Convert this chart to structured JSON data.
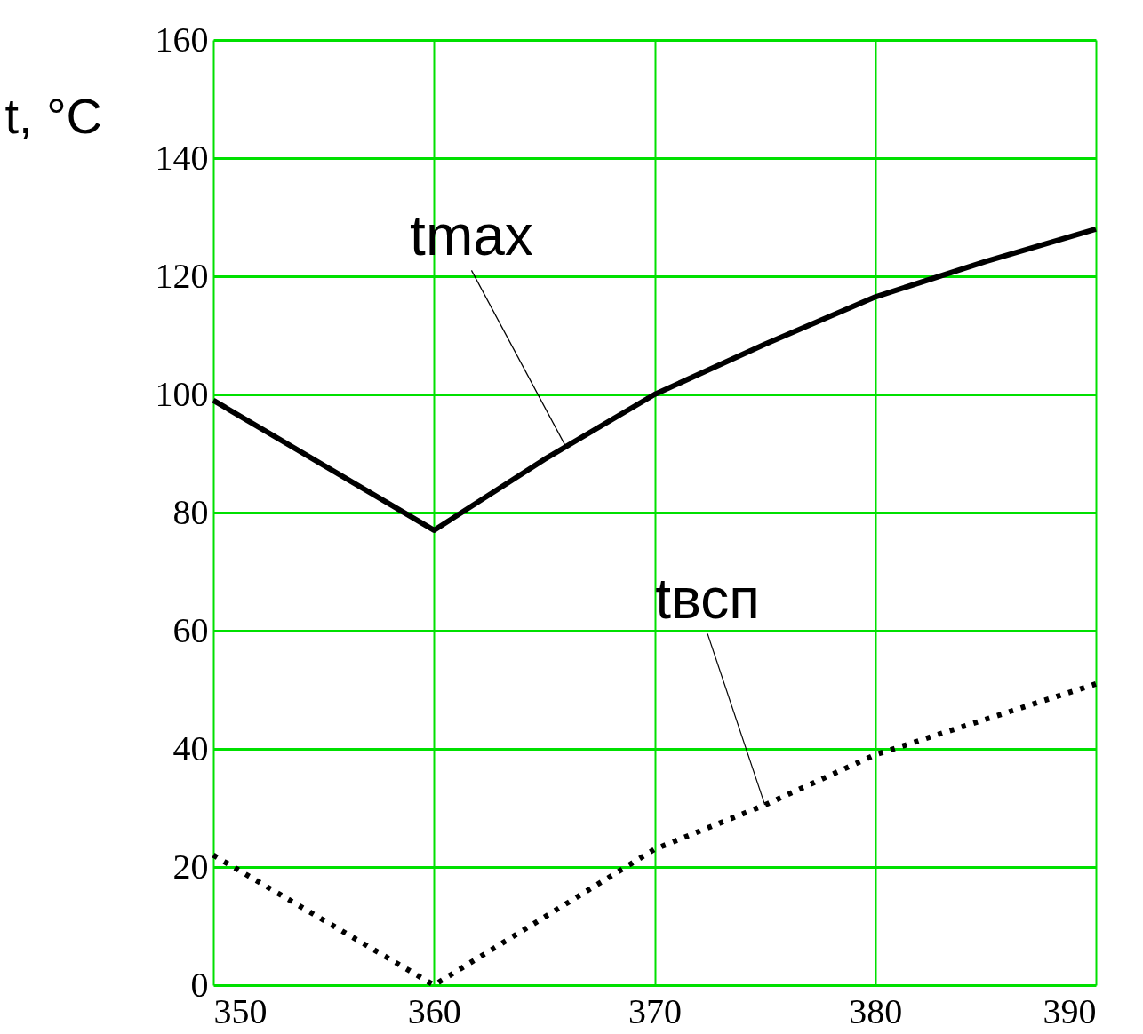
{
  "chart_data": {
    "type": "line",
    "ylabel": "t, °C",
    "x": [
      350,
      360,
      365,
      370,
      375,
      380,
      385,
      390
    ],
    "series": [
      {
        "color": "#000000",
        "line_style": "solid",
        "values": [
          99,
          77,
          89,
          100,
          108.5,
          116.5,
          122.5,
          128
        ]
      },
      {
        "color": "#000000",
        "line_style": "dotted",
        "values": [
          22,
          0,
          11.5,
          23,
          30.5,
          39,
          45,
          51
        ]
      }
    ],
    "annotations": [
      {
        "text": "tmax",
        "x": 366,
        "y": 91
      },
      {
        "text": "tвсп",
        "x": 375,
        "y": 30.5
      }
    ],
    "xlim": [
      350,
      390
    ],
    "xticks": [
      350,
      360,
      370,
      380,
      390
    ],
    "ylim": [
      0,
      160
    ],
    "yticks": [
      0,
      20,
      40,
      60,
      80,
      100,
      120,
      140,
      160
    ],
    "grid": true,
    "marker": "none"
  }
}
